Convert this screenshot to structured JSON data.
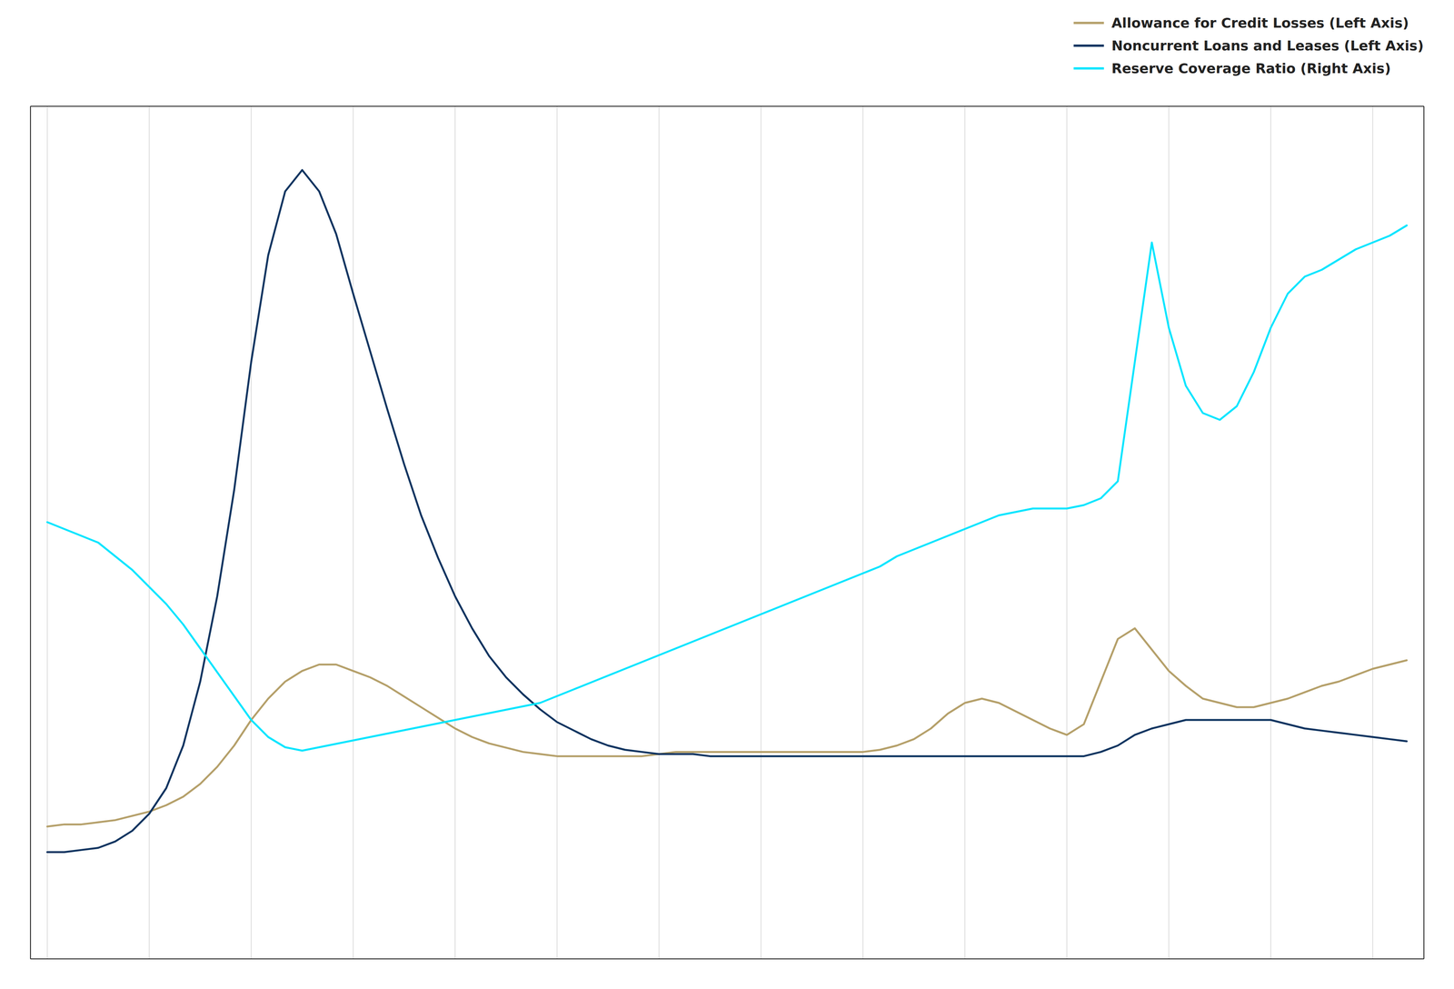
{
  "chart_data": {
    "type": "line",
    "x": [
      0,
      1,
      2,
      3,
      4,
      5,
      6,
      7,
      8,
      9,
      10,
      11,
      12,
      13,
      14,
      15,
      16,
      17,
      18,
      19,
      20,
      21,
      22,
      23,
      24,
      25,
      26,
      27,
      28,
      29,
      30,
      31,
      32,
      33,
      34,
      35,
      36,
      37,
      38,
      39,
      40,
      41,
      42,
      43,
      44,
      45,
      46,
      47,
      48,
      49,
      50,
      51,
      52,
      53,
      54,
      55,
      56,
      57,
      58,
      59,
      60,
      61,
      62,
      63,
      64,
      65,
      66,
      67,
      68,
      69,
      70,
      71,
      72,
      73,
      74,
      75,
      76,
      77,
      78,
      79,
      80
    ],
    "series": [
      {
        "name": "Allowance for Credit Losses (Left Axis)",
        "color": "#b5a06a",
        "values": [
          62,
          63,
          63,
          64,
          65,
          67,
          69,
          72,
          76,
          82,
          90,
          100,
          112,
          122,
          130,
          135,
          138,
          138,
          135,
          132,
          128,
          123,
          118,
          113,
          108,
          104,
          101,
          99,
          97,
          96,
          95,
          95,
          95,
          95,
          95,
          95,
          96,
          97,
          97,
          97,
          97,
          97,
          97,
          97,
          97,
          97,
          97,
          97,
          97,
          98,
          100,
          103,
          108,
          115,
          120,
          122,
          120,
          116,
          112,
          108,
          105,
          110,
          130,
          150,
          155,
          145,
          135,
          128,
          122,
          120,
          118,
          118,
          120,
          122,
          125,
          128,
          130,
          133,
          136,
          138,
          140
        ]
      },
      {
        "name": "Noncurrent Loans and Leases (Left Axis)",
        "color": "#0d3460",
        "values": [
          50,
          50,
          51,
          52,
          55,
          60,
          68,
          80,
          100,
          130,
          170,
          220,
          280,
          330,
          360,
          370,
          360,
          340,
          312,
          285,
          258,
          232,
          208,
          188,
          170,
          155,
          142,
          132,
          124,
          117,
          111,
          107,
          103,
          100,
          98,
          97,
          96,
          96,
          96,
          95,
          95,
          95,
          95,
          95,
          95,
          95,
          95,
          95,
          95,
          95,
          95,
          95,
          95,
          95,
          95,
          95,
          95,
          95,
          95,
          95,
          95,
          95,
          97,
          100,
          105,
          108,
          110,
          112,
          112,
          112,
          112,
          112,
          112,
          110,
          108,
          107,
          106,
          105,
          104,
          103,
          102
        ]
      },
      {
        "name": "Reserve Coverage Ratio (Right Axis)",
        "color": "#00e5ff",
        "axis": "y2",
        "values": [
          1.28,
          1.26,
          1.24,
          1.22,
          1.18,
          1.14,
          1.09,
          1.04,
          0.98,
          0.91,
          0.84,
          0.77,
          0.7,
          0.65,
          0.62,
          0.61,
          0.62,
          0.63,
          0.64,
          0.65,
          0.66,
          0.67,
          0.68,
          0.69,
          0.7,
          0.71,
          0.72,
          0.73,
          0.74,
          0.75,
          0.77,
          0.79,
          0.81,
          0.83,
          0.85,
          0.87,
          0.89,
          0.91,
          0.93,
          0.95,
          0.97,
          0.99,
          1.01,
          1.03,
          1.05,
          1.07,
          1.09,
          1.11,
          1.13,
          1.15,
          1.18,
          1.2,
          1.22,
          1.24,
          1.26,
          1.28,
          1.3,
          1.31,
          1.32,
          1.32,
          1.32,
          1.33,
          1.35,
          1.4,
          1.75,
          2.1,
          1.85,
          1.68,
          1.6,
          1.58,
          1.62,
          1.72,
          1.85,
          1.95,
          2.0,
          2.02,
          2.05,
          2.08,
          2.1,
          2.12,
          2.15
        ]
      }
    ],
    "xlim": [
      -1,
      81
    ],
    "xticks": [
      0,
      6,
      12,
      18,
      24,
      30,
      36,
      42,
      48,
      54,
      60,
      66,
      72,
      78
    ],
    "ylim": [
      0,
      400
    ],
    "y2lim": [
      0,
      2.5
    ],
    "grid": true,
    "tick_labels": false,
    "legend": "upper right"
  }
}
